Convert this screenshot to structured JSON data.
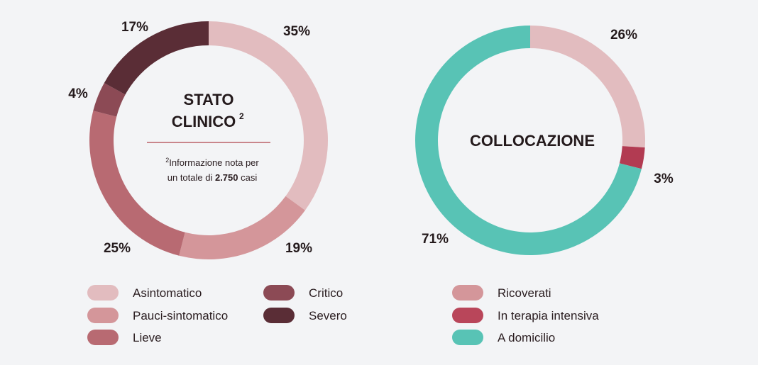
{
  "chart_data": [
    {
      "type": "pie",
      "title": "STATO CLINICO",
      "title_sup": "2",
      "note": {
        "sup": "2",
        "line1": "Informazione nota per",
        "line2_prefix": "un totale di ",
        "line2_bold": "2.750",
        "line2_suffix": " casi"
      },
      "slices": [
        {
          "label": "Asintomatico",
          "value": 35,
          "value_label": "35%",
          "color": "#e2bcbf"
        },
        {
          "label": "Pauci-sintomatico",
          "value": 19,
          "value_label": "19%",
          "color": "#d4969a"
        },
        {
          "label": "Lieve",
          "value": 25,
          "value_label": "25%",
          "color": "#b86a72"
        },
        {
          "label": "Critico",
          "value": 4,
          "value_label": "4%",
          "color": "#8c4a55"
        },
        {
          "label": "Severo",
          "value": 17,
          "value_label": "17%",
          "color": "#5a2d36"
        }
      ]
    },
    {
      "type": "pie",
      "title": "COLLOCAZIONE",
      "slices": [
        {
          "label": "Ricoverati",
          "value": 26,
          "value_label": "26%",
          "color": "#e2bcbf"
        },
        {
          "label": "In terapia intensiva",
          "value": 3,
          "value_label": "3%",
          "color": "#b23b52"
        },
        {
          "label": "A domicilio",
          "value": 71,
          "value_label": "71%",
          "color": "#58c3b5"
        }
      ],
      "legend_colors": {
        "Ricoverati": "#d4969a",
        "In terapia intensiva": "#b9465a",
        "A domicilio": "#58c3b5"
      }
    }
  ]
}
